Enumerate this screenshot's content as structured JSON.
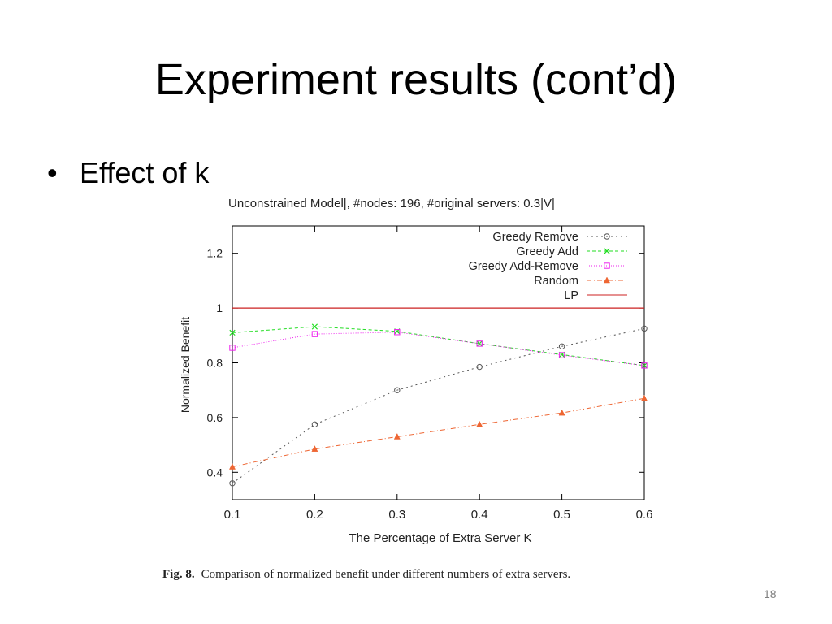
{
  "slide": {
    "title": "Experiment results (cont’d)",
    "bullet": "Effect of k",
    "caption_label": "Fig. 8.",
    "caption_text": "Comparison of normalized benefit under different numbers of extra servers.",
    "page_number": "18"
  },
  "chart_data": {
    "type": "line",
    "title": "Unconstrained Model|, #nodes: 196, #original servers: 0.3|V|",
    "xlabel": "The Percentage of Extra Server K",
    "ylabel": "Normalized Benefit",
    "x": [
      0.1,
      0.2,
      0.3,
      0.4,
      0.5,
      0.6
    ],
    "x_ticks": [
      "0.1",
      "0.2",
      "0.3",
      "0.4",
      "0.5",
      "0.6"
    ],
    "y_ticks": [
      "0.4",
      "0.6",
      "0.8",
      "1",
      "1.2"
    ],
    "y_tick_values": [
      0.4,
      0.6,
      0.8,
      1.0,
      1.2
    ],
    "xlim": [
      0.1,
      0.6
    ],
    "ylim": [
      0.3,
      1.3
    ],
    "grid": false,
    "legend_position": "top-right",
    "series": [
      {
        "name": "Greedy Remove",
        "values": [
          0.36,
          0.575,
          0.7,
          0.785,
          0.86,
          0.925
        ],
        "color": "#555555",
        "marker": "circle",
        "dash": "2,4"
      },
      {
        "name": "Greedy Add",
        "values": [
          0.91,
          0.932,
          0.915,
          0.87,
          0.83,
          0.79
        ],
        "color": "#22dd22",
        "marker": "x",
        "dash": "4,3"
      },
      {
        "name": "Greedy Add-Remove",
        "values": [
          0.855,
          0.905,
          0.912,
          0.87,
          0.828,
          0.79
        ],
        "color": "#ee22ee",
        "marker": "square",
        "dash": "1,2"
      },
      {
        "name": "Random",
        "values": [
          0.42,
          0.485,
          0.53,
          0.575,
          0.617,
          0.67
        ],
        "color": "#ee6633",
        "marker": "triangle",
        "dash": "6,3,1,3"
      },
      {
        "name": "LP",
        "values": [
          1.0,
          1.0,
          1.0,
          1.0,
          1.0,
          1.0
        ],
        "color": "#cc2222",
        "marker": "none",
        "dash": ""
      }
    ]
  }
}
